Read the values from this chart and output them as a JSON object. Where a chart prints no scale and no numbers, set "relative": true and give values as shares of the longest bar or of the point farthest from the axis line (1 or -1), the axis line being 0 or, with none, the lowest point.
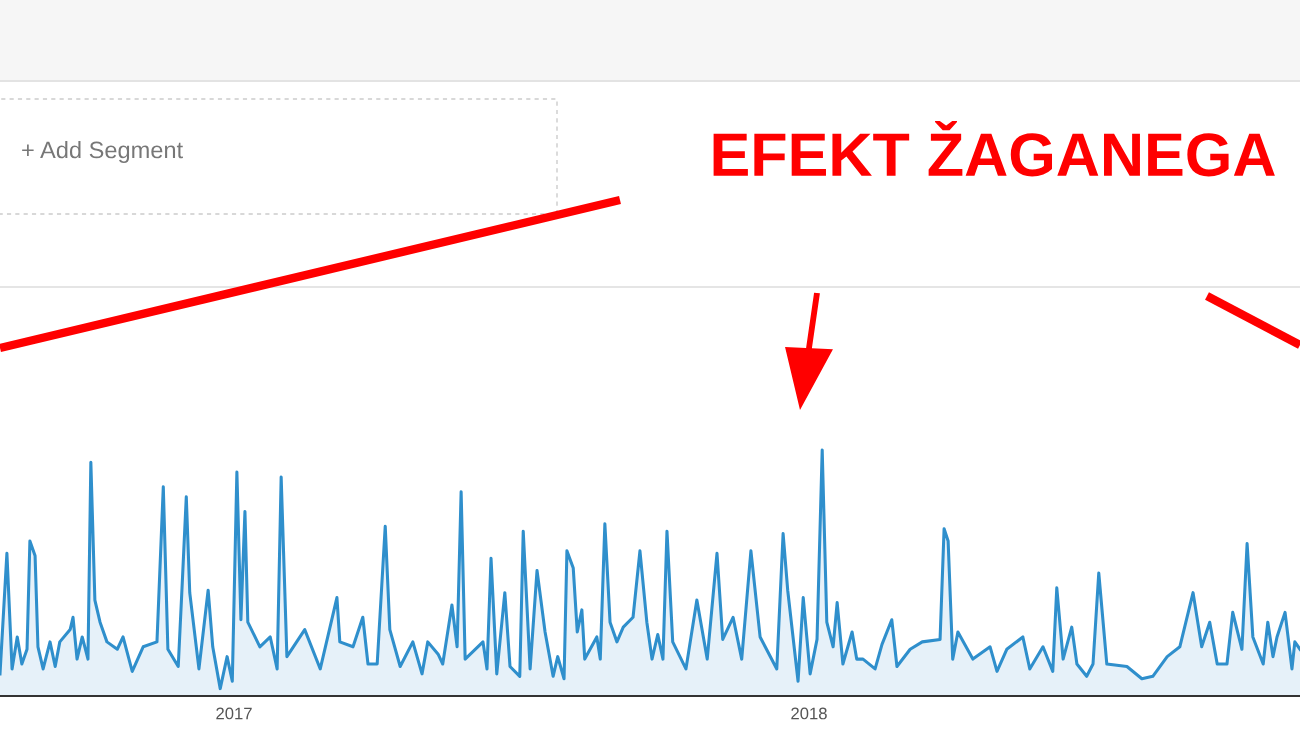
{
  "chart_data": {
    "type": "area",
    "relative": true,
    "title": "EFEKT ŽAGANEGA",
    "annotations": [
      "+ Add Segment"
    ],
    "xlim": [
      2016.593,
      2018.854
    ],
    "xticks": [
      2017,
      2018
    ],
    "series": [
      {
        "color": "#2f8fcc",
        "x": [
          2016.593,
          2016.605,
          2016.614,
          2016.623,
          2016.631,
          2016.64,
          2016.645,
          2016.654,
          2016.659,
          2016.668,
          2016.68,
          2016.689,
          2016.697,
          2016.715,
          2016.72,
          2016.727,
          2016.736,
          2016.746,
          2016.751,
          2016.758,
          2016.767,
          2016.779,
          2016.797,
          2016.807,
          2016.823,
          2016.842,
          2016.866,
          2016.877,
          2016.885,
          2016.903,
          2016.91,
          2016.917,
          2016.923,
          2016.939,
          2016.955,
          2016.963,
          2016.976,
          2016.988,
          2016.997,
          2017.005,
          2017.012,
          2017.019,
          2017.024,
          2017.045,
          2017.063,
          2017.075,
          2017.082,
          2017.092,
          2017.123,
          2017.15,
          2017.179,
          2017.184,
          2017.207,
          2017.224,
          2017.233,
          2017.249,
          2017.263,
          2017.271,
          2017.289,
          2017.311,
          2017.327,
          2017.337,
          2017.355,
          2017.363,
          2017.379,
          2017.388,
          2017.395,
          2017.402,
          2017.433,
          2017.44,
          2017.447,
          2017.457,
          2017.471,
          2017.48,
          2017.497,
          2017.503,
          2017.515,
          2017.527,
          2017.541,
          2017.555,
          2017.563,
          2017.574,
          2017.579,
          2017.59,
          2017.597,
          2017.605,
          2017.61,
          2017.631,
          2017.637,
          2017.645,
          2017.654,
          2017.666,
          2017.677,
          2017.694,
          2017.706,
          2017.718,
          2017.727,
          2017.737,
          2017.746,
          2017.753,
          2017.763,
          2017.786,
          2017.805,
          2017.823,
          2017.84,
          2017.85,
          2017.868,
          2017.883,
          2017.899,
          2017.915,
          2017.944,
          2017.955,
          2017.963,
          2017.981,
          2017.99,
          2018.002,
          2018.014,
          2018.023,
          2018.031,
          2018.042,
          2018.049,
          2018.059,
          2018.075,
          2018.083,
          2018.094,
          2018.115,
          2018.127,
          2018.144,
          2018.153,
          2018.176,
          2018.197,
          2018.228,
          2018.235,
          2018.242,
          2018.25,
          2018.259,
          2018.285,
          2018.315,
          2018.327,
          2018.344,
          2018.372,
          2018.384,
          2018.407,
          2018.424,
          2018.431,
          2018.442,
          2018.457,
          2018.466,
          2018.483,
          2018.494,
          2018.504,
          2018.518,
          2018.553,
          2018.579,
          2018.598,
          2018.623,
          2018.645,
          2018.668,
          2018.683,
          2018.697,
          2018.71,
          2018.727,
          2018.737,
          2018.753,
          2018.762,
          2018.772,
          2018.79,
          2018.798,
          2018.807,
          2018.814,
          2018.828,
          2018.84,
          2018.845,
          2018.854
        ],
        "values": [
          0.09,
          0.58,
          0.11,
          0.24,
          0.13,
          0.19,
          0.63,
          0.57,
          0.2,
          0.11,
          0.22,
          0.12,
          0.22,
          0.27,
          0.32,
          0.15,
          0.24,
          0.15,
          0.95,
          0.39,
          0.3,
          0.22,
          0.19,
          0.24,
          0.1,
          0.2,
          0.22,
          0.85,
          0.19,
          0.12,
          0.46,
          0.81,
          0.42,
          0.11,
          0.43,
          0.2,
          0.03,
          0.16,
          0.06,
          0.91,
          0.31,
          0.75,
          0.3,
          0.2,
          0.24,
          0.11,
          0.89,
          0.16,
          0.27,
          0.11,
          0.4,
          0.22,
          0.2,
          0.32,
          0.13,
          0.13,
          0.69,
          0.27,
          0.12,
          0.22,
          0.09,
          0.22,
          0.17,
          0.13,
          0.37,
          0.2,
          0.83,
          0.15,
          0.22,
          0.11,
          0.56,
          0.09,
          0.42,
          0.12,
          0.08,
          0.67,
          0.11,
          0.51,
          0.26,
          0.08,
          0.16,
          0.07,
          0.59,
          0.52,
          0.26,
          0.35,
          0.15,
          0.24,
          0.15,
          0.7,
          0.3,
          0.22,
          0.28,
          0.32,
          0.59,
          0.3,
          0.15,
          0.25,
          0.15,
          0.67,
          0.22,
          0.11,
          0.39,
          0.15,
          0.58,
          0.23,
          0.32,
          0.15,
          0.59,
          0.24,
          0.11,
          0.66,
          0.43,
          0.06,
          0.4,
          0.09,
          0.23,
          1.0,
          0.3,
          0.2,
          0.38,
          0.13,
          0.26,
          0.15,
          0.15,
          0.11,
          0.21,
          0.31,
          0.12,
          0.19,
          0.22,
          0.23,
          0.68,
          0.63,
          0.15,
          0.26,
          0.15,
          0.2,
          0.1,
          0.19,
          0.24,
          0.11,
          0.2,
          0.1,
          0.44,
          0.15,
          0.28,
          0.13,
          0.08,
          0.13,
          0.5,
          0.13,
          0.12,
          0.07,
          0.08,
          0.16,
          0.2,
          0.42,
          0.2,
          0.3,
          0.13,
          0.13,
          0.34,
          0.19,
          0.62,
          0.24,
          0.13,
          0.3,
          0.16,
          0.24,
          0.34,
          0.11,
          0.22,
          0.19
        ]
      }
    ]
  }
}
